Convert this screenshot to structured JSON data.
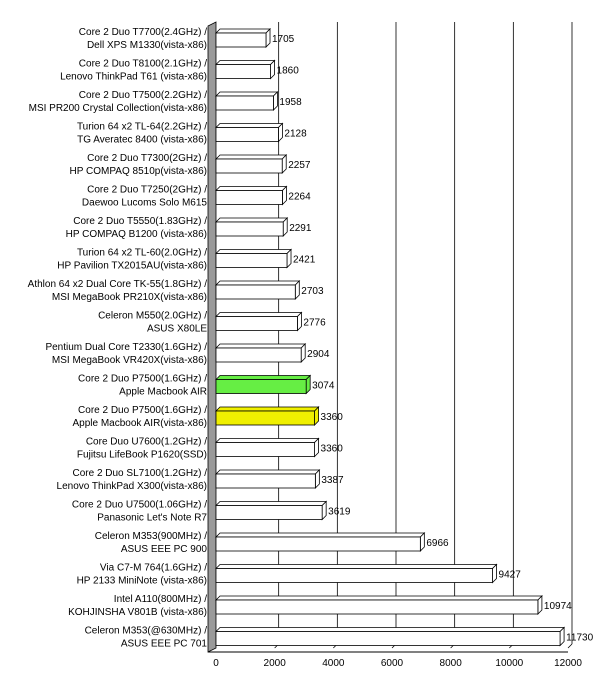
{
  "chart_data": {
    "type": "bar",
    "orientation": "horizontal",
    "title": "",
    "xlabel": "",
    "ylabel": "",
    "xlim": [
      0,
      12000
    ],
    "xticks": [
      0,
      2000,
      4000,
      6000,
      8000,
      10000,
      12000
    ],
    "grid": true,
    "legend": "none",
    "colors": {
      "default": "#ffffff",
      "highlight_green": "#66ee44",
      "highlight_yellow": "#f0f000",
      "bar_edge": "#000000",
      "wall": "#9a9a9a",
      "gridline": "#000000"
    },
    "bars": [
      {
        "label1": "Core 2 Duo T7700(2.4GHz) /",
        "label2": "Dell XPS M1330(vista-x86)",
        "value": 1705,
        "color": "default"
      },
      {
        "label1": "Core 2 Duo T8100(2.1GHz) /",
        "label2": "Lenovo ThinkPad T61 (vista-x86)",
        "value": 1860,
        "color": "default"
      },
      {
        "label1": "Core 2 Duo T7500(2.2GHz) /",
        "label2": "MSI PR200 Crystal Collection(vista-x86)",
        "value": 1958,
        "color": "default"
      },
      {
        "label1": "Turion 64 x2 TL-64(2.2GHz) /",
        "label2": "TG Averatec 8400 (vista-x86)",
        "value": 2128,
        "color": "default"
      },
      {
        "label1": "Core 2 Duo T7300(2GHz) /",
        "label2": "HP COMPAQ 8510p(vista-x86)",
        "value": 2257,
        "color": "default"
      },
      {
        "label1": "Core 2 Duo T7250(2GHz) /",
        "label2": "Daewoo Lucoms Solo M615",
        "value": 2264,
        "color": "default"
      },
      {
        "label1": "Core 2 Duo T5550(1.83GHz) /",
        "label2": "HP COMPAQ B1200 (vista-x86)",
        "value": 2291,
        "color": "default"
      },
      {
        "label1": "Turion 64 x2 TL-60(2.0GHz) /",
        "label2": "HP Pavilion TX2015AU(vista-x86)",
        "value": 2421,
        "color": "default"
      },
      {
        "label1": "Athlon 64 x2 Dual Core TK-55(1.8GHz) /",
        "label2": "MSI MegaBook PR210X(vista-x86)",
        "value": 2703,
        "color": "default"
      },
      {
        "label1": "Celeron M550(2.0GHz) /",
        "label2": "ASUS X80LE",
        "value": 2776,
        "color": "default"
      },
      {
        "label1": "Pentium Dual Core T2330(1.6GHz) /",
        "label2": "MSI MegaBook VR420X(vista-x86)",
        "value": 2904,
        "color": "default"
      },
      {
        "label1": "Core 2 Duo P7500(1.6GHz) /",
        "label2": "Apple Macbook AIR",
        "value": 3074,
        "color": "highlight_green"
      },
      {
        "label1": "Core 2 Duo P7500(1.6GHz) /",
        "label2": "Apple Macbook AIR(vista-x86)",
        "value": 3360,
        "color": "highlight_yellow"
      },
      {
        "label1": "Core Duo U7600(1.2GHz) /",
        "label2": "Fujitsu LifeBook P1620(SSD)",
        "value": 3360,
        "color": "default"
      },
      {
        "label1": "Core 2 Duo SL7100(1.2GHz) /",
        "label2": "Lenovo ThinkPad X300(vista-x86)",
        "value": 3387,
        "color": "default"
      },
      {
        "label1": "Core 2 Duo U7500(1.06GHz) /",
        "label2": "Panasonic Let's Note R7",
        "value": 3619,
        "color": "default"
      },
      {
        "label1": "Celeron M353(900MHz) /",
        "label2": "ASUS EEE PC 900",
        "value": 6966,
        "color": "default"
      },
      {
        "label1": "Via C7-M 764(1.6GHz) /",
        "label2": "HP 2133 MiniNote (vista-x86)",
        "value": 9427,
        "color": "default"
      },
      {
        "label1": "Intel A110(800MHz) /",
        "label2": "KOHJINSHA V801B (vista-x86)",
        "value": 10974,
        "color": "default"
      },
      {
        "label1": "Celeron M353(@630MHz) /",
        "label2": "ASUS EEE PC 701",
        "value": 11730,
        "color": "default"
      }
    ]
  }
}
